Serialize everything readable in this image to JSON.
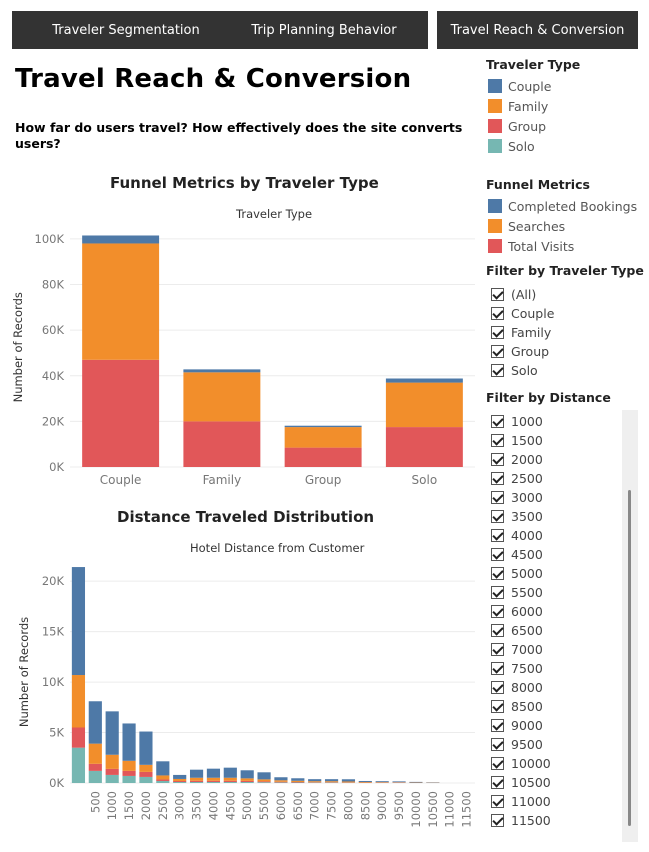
{
  "nav": [
    {
      "label": "Traveler Segmentation"
    },
    {
      "label": "Trip Planning Behavior"
    },
    {
      "label": "Travel Reach & Conversion"
    }
  ],
  "page": {
    "title": "Travel Reach & Conversion",
    "subtitle": "How far do users travel? How effectively does the site converts users?"
  },
  "colors": {
    "blue": "#4e79a7",
    "orange": "#f28e2b",
    "red": "#e15759",
    "teal": "#76b7b2"
  },
  "legend_traveler": {
    "title": "Traveler Type",
    "items": [
      {
        "label": "Couple",
        "color": "#4e79a7"
      },
      {
        "label": "Family",
        "color": "#f28e2b"
      },
      {
        "label": "Group",
        "color": "#e15759"
      },
      {
        "label": "Solo",
        "color": "#76b7b2"
      }
    ]
  },
  "legend_funnel": {
    "title": "Funnel Metrics",
    "items": [
      {
        "label": "Completed Bookings",
        "color": "#4e79a7"
      },
      {
        "label": "Searches",
        "color": "#f28e2b"
      },
      {
        "label": "Total Visits",
        "color": "#e15759"
      }
    ]
  },
  "filter_traveler": {
    "title": "Filter by Traveler Type",
    "items": [
      "(All)",
      "Couple",
      "Family",
      "Group",
      "Solo"
    ]
  },
  "filter_distance": {
    "title": "Filter by Distance",
    "items": [
      "1000",
      "1500",
      "2000",
      "2500",
      "3000",
      "3500",
      "4000",
      "4500",
      "5000",
      "5500",
      "6000",
      "6500",
      "7000",
      "7500",
      "8000",
      "8500",
      "9000",
      "9500",
      "10000",
      "10500",
      "11000",
      "11500"
    ]
  },
  "chart_data": [
    {
      "type": "bar",
      "title": "Funnel Metrics by Traveler Type",
      "subtitle": "Traveler Type",
      "ylabel": "Number of Records",
      "categories": [
        "Couple",
        "Family",
        "Group",
        "Solo"
      ],
      "ylim": [
        0,
        105000
      ],
      "yticks": [
        0,
        20000,
        40000,
        60000,
        80000,
        100000
      ],
      "ytick_labels": [
        "0K",
        "20K",
        "40K",
        "60K",
        "80K",
        "100K"
      ],
      "stacked": true,
      "series": [
        {
          "name": "Total Visits",
          "color": "#e15759",
          "values": [
            47000,
            20000,
            8500,
            17500
          ]
        },
        {
          "name": "Searches",
          "color": "#f28e2b",
          "values": [
            51000,
            21500,
            9000,
            19500
          ]
        },
        {
          "name": "Completed Bookings",
          "color": "#4e79a7",
          "values": [
            3500,
            1300,
            600,
            1800
          ]
        }
      ]
    },
    {
      "type": "bar",
      "title": "Distance Traveled Distribution",
      "subtitle": "Hotel Distance from Customer",
      "ylabel": "Number of Records",
      "categories": [
        "0",
        "500",
        "1000",
        "1500",
        "2000",
        "2500",
        "3000",
        "3500",
        "4000",
        "4500",
        "5000",
        "5500",
        "6000",
        "6500",
        "7000",
        "7500",
        "8000",
        "8500",
        "9000",
        "9500",
        "10000",
        "10500",
        "11000",
        "11500"
      ],
      "xtick_labels": [
        "",
        "500",
        "1000",
        "1500",
        "2000",
        "2500",
        "3000",
        "3500",
        "4000",
        "4500",
        "5000",
        "5500",
        "6000",
        "6500",
        "7000",
        "7500",
        "8000",
        "8500",
        "9000",
        "9500",
        "10000",
        "10500",
        "11000",
        "11500"
      ],
      "ylim": [
        0,
        22000
      ],
      "yticks": [
        0,
        5000,
        10000,
        15000,
        20000
      ],
      "ytick_labels": [
        "0K",
        "5K",
        "10K",
        "15K",
        "20K"
      ],
      "stacked": true,
      "series": [
        {
          "name": "Solo",
          "color": "#76b7b2",
          "values": [
            3500,
            1200,
            800,
            700,
            600,
            200,
            100,
            100,
            100,
            100,
            100,
            80,
            60,
            50,
            40,
            40,
            30,
            20,
            20,
            20,
            10,
            10,
            0,
            0
          ]
        },
        {
          "name": "Group",
          "color": "#e15759",
          "values": [
            2000,
            700,
            600,
            500,
            500,
            150,
            100,
            120,
            120,
            120,
            110,
            80,
            60,
            50,
            40,
            40,
            30,
            20,
            20,
            20,
            10,
            10,
            0,
            0
          ]
        },
        {
          "name": "Family",
          "color": "#f28e2b",
          "values": [
            5200,
            2000,
            1400,
            1000,
            700,
            400,
            200,
            300,
            300,
            300,
            250,
            200,
            150,
            120,
            100,
            100,
            90,
            60,
            50,
            40,
            30,
            20,
            0,
            0
          ]
        },
        {
          "name": "Couple",
          "color": "#4e79a7",
          "values": [
            10700,
            4200,
            4300,
            3700,
            3300,
            1400,
            400,
            800,
            900,
            1000,
            800,
            700,
            300,
            250,
            200,
            200,
            220,
            100,
            90,
            80,
            60,
            30,
            0,
            0
          ]
        }
      ]
    }
  ]
}
